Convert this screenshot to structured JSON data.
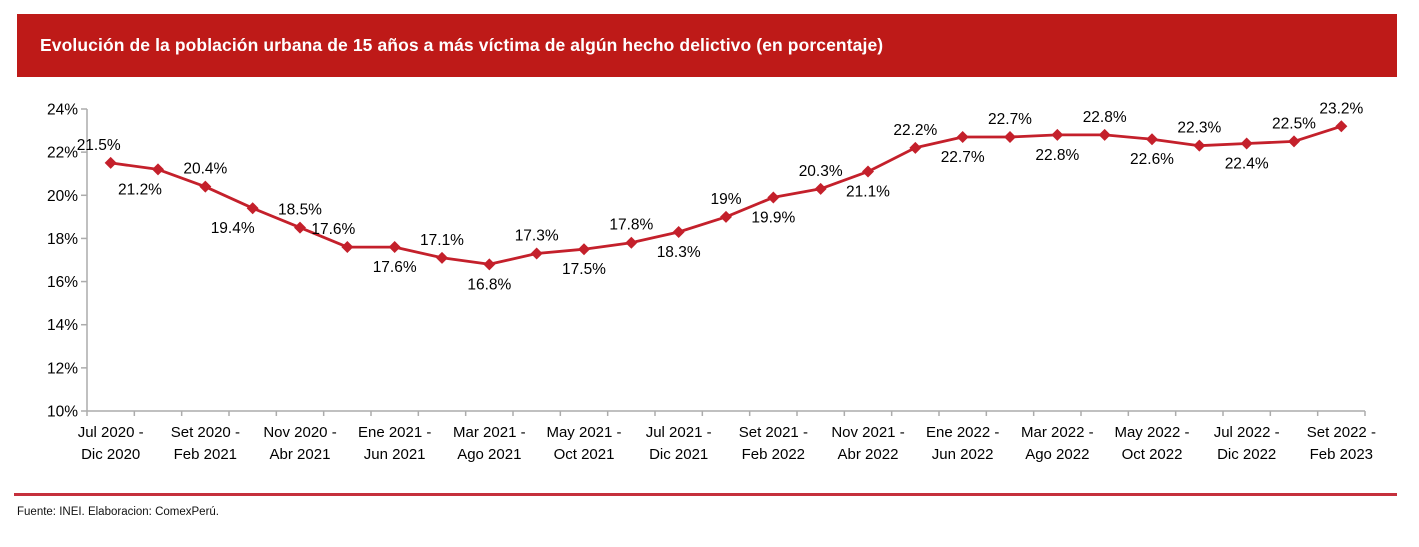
{
  "header": {
    "title": "Evolución de la población urbana de 15 años a más víctima de algún hecho delictivo (en porcentaje)"
  },
  "footer": {
    "source": "Fuente: INEI. Elaboracion: ComexPerú."
  },
  "colors": {
    "banner_red": "#BE1A18",
    "line_red": "#C4202B",
    "divider_red": "#C5303C",
    "axis_gray": "#ACACAC",
    "label_black": "#000000",
    "title_text": "#FFFFFF",
    "background": "#FFFFFF"
  },
  "chart_data": {
    "type": "line",
    "title": "Evolución de la población urbana de 15 años a más víctima de algún hecho delictivo (en porcentaje)",
    "xlabel": "",
    "ylabel": "",
    "ylim": [
      10,
      24
    ],
    "ytick_step": 2,
    "ytick_suffix": "%",
    "grid": false,
    "legend": "none",
    "x_tick_every": 2,
    "x_tick_labels": [
      [
        "Jul 2020 -",
        "Dic 2020"
      ],
      [
        "Set 2020 -",
        "Feb 2021"
      ],
      [
        "Nov 2020 -",
        "Abr 2021"
      ],
      [
        "Ene 2021 -",
        "Jun 2021"
      ],
      [
        "Mar 2021 -",
        "Ago 2021"
      ],
      [
        "May 2021 -",
        "Oct 2021"
      ],
      [
        "Jul 2021 -",
        "Dic 2021"
      ],
      [
        "Set 2021 -",
        "Feb 2022"
      ],
      [
        "Nov 2021 -",
        "Abr 2022"
      ],
      [
        "Ene 2022 -",
        "Jun 2022"
      ],
      [
        "Mar 2022 -",
        "Ago 2022"
      ],
      [
        "May 2022 -",
        "Oct 2022"
      ],
      [
        "Jul 2022 -",
        "Dic 2022"
      ],
      [
        "Set 2022 -",
        "Feb 2023"
      ]
    ],
    "series": [
      {
        "color": "#C4202B",
        "marker": "diamond",
        "values": [
          21.5,
          21.2,
          20.4,
          19.4,
          18.5,
          17.6,
          17.6,
          17.1,
          16.8,
          17.3,
          17.5,
          17.8,
          18.3,
          19.0,
          19.9,
          20.3,
          21.1,
          22.2,
          22.7,
          22.7,
          22.8,
          22.8,
          22.6,
          22.3,
          22.4,
          22.5,
          23.2
        ],
        "data_labels": [
          "21.5%",
          "21.2%",
          "20.4%",
          "19.4%",
          "18.5%",
          "17.6%",
          "17.6%",
          "17.1%",
          "16.8%",
          "17.3%",
          "17.5%",
          "17.8%",
          "18.3%",
          "19%",
          "19.9%",
          "20.3%",
          "21.1%",
          "22.2%",
          "22.7%",
          "22.7%",
          "22.8%",
          "22.8%",
          "22.6%",
          "22.3%",
          "22.4%",
          "22.5%",
          "23.2%"
        ],
        "label_positions": [
          "above",
          "below",
          "above",
          "below",
          "above",
          "above",
          "below",
          "above",
          "below",
          "above",
          "below",
          "above",
          "below",
          "above",
          "below",
          "above",
          "below",
          "above",
          "below",
          "above",
          "below",
          "above",
          "below",
          "above",
          "below",
          "above",
          "above"
        ],
        "label_dx": [
          -12,
          -18,
          0,
          -20,
          0,
          -14,
          0,
          0,
          0,
          0,
          0,
          0,
          0,
          0,
          0,
          0,
          0,
          0,
          0,
          0,
          0,
          0,
          0,
          0,
          0,
          0,
          0
        ]
      }
    ]
  }
}
